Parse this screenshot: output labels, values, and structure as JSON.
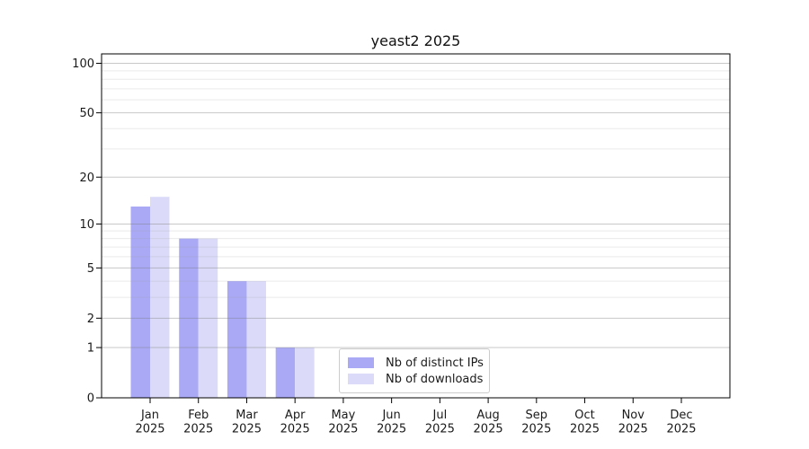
{
  "figure": {
    "background": "#ffffff",
    "spine_color": "#000000",
    "grid_major_color": "rgba(125,125,125,0.42)",
    "grid_minor_color": "rgba(160,160,160,0.22)",
    "tick_color": "#000000",
    "text_color": "#1a1a1a",
    "tick_font_size": 13,
    "title_font_size": 16
  },
  "legend": {
    "items": [
      {
        "label": "Nb of distinct IPs",
        "color": "#a9a9f6"
      },
      {
        "label": "Nb of downloads",
        "color": "#dbdbf9"
      }
    ]
  },
  "chart_data": {
    "type": "bar",
    "title": "yeast2 2025",
    "categories": [
      "Jan",
      "Feb",
      "Mar",
      "Apr",
      "May",
      "Jun",
      "Jul",
      "Aug",
      "Sep",
      "Oct",
      "Nov",
      "Dec"
    ],
    "x_tick_second_line": "2025",
    "series": [
      {
        "name": "Nb of distinct IPs",
        "color": "#a9a9f6",
        "values": [
          13,
          8,
          4,
          1,
          0,
          0,
          0,
          0,
          0,
          0,
          0,
          0
        ]
      },
      {
        "name": "Nb of downloads",
        "color": "#dbdbf9",
        "values": [
          15,
          8,
          4,
          1,
          0,
          0,
          0,
          0,
          0,
          0,
          0,
          0
        ]
      }
    ],
    "xlabel": "",
    "ylabel": "",
    "y_scale": "log10(1+v)",
    "y_major_ticks": [
      0,
      1,
      2,
      5,
      10,
      20,
      50,
      100
    ],
    "y_minor_gridlines": [
      3,
      4,
      6,
      7,
      8,
      9,
      30,
      40,
      60,
      70,
      80,
      90
    ],
    "ylim": [
      0,
      114
    ],
    "grid": "horizontal-over-bars",
    "legend_position": "lower center"
  }
}
